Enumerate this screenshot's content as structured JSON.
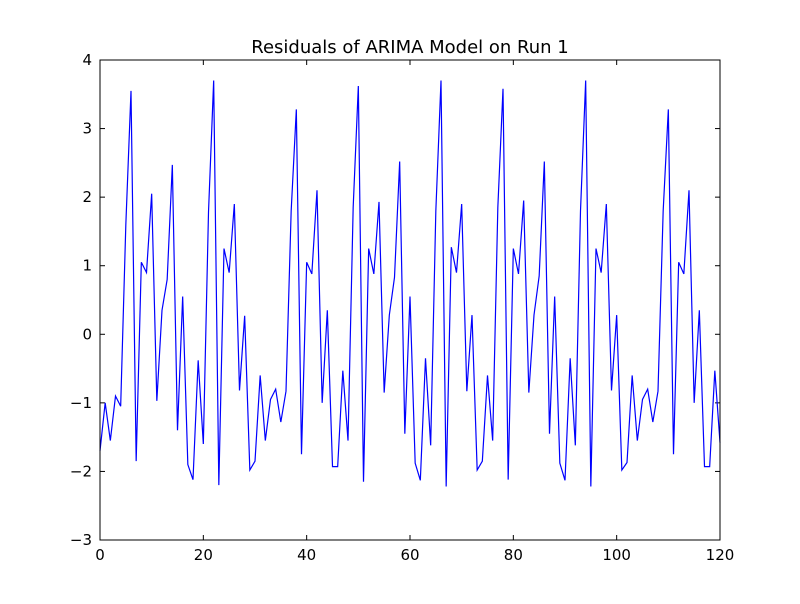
{
  "chart_data": {
    "type": "line",
    "title": "Residuals of ARIMA Model on Run 1",
    "xlabel": "",
    "ylabel": "",
    "xlim": [
      0,
      120
    ],
    "ylim": [
      -3,
      4
    ],
    "xticks": [
      0,
      20,
      40,
      60,
      80,
      100,
      120
    ],
    "yticks": [
      -3,
      -2,
      -1,
      0,
      1,
      2,
      3,
      4
    ],
    "grid": false,
    "legend": "none",
    "series_color": "#0000ff",
    "series": [
      {
        "x": [
          0,
          1,
          2,
          3,
          4,
          5,
          6,
          7,
          8,
          9,
          10,
          11,
          12,
          13,
          14,
          15,
          16,
          17,
          18,
          19,
          20,
          21,
          22,
          23,
          24,
          25,
          26,
          27,
          28,
          29,
          30,
          31,
          32,
          33,
          34,
          35,
          36,
          37,
          38,
          39,
          40,
          41,
          42,
          43,
          44,
          45,
          46,
          47,
          48,
          49,
          50,
          51,
          52,
          53,
          54,
          55,
          56,
          57,
          58,
          59,
          60,
          61,
          62,
          63,
          64,
          65,
          66,
          67,
          68,
          69,
          70,
          71,
          72,
          73,
          74,
          75,
          76,
          77,
          78,
          79,
          80,
          81,
          82,
          83,
          84,
          85,
          86,
          87,
          88,
          89,
          90,
          91,
          92,
          93,
          94,
          95,
          96,
          97,
          98,
          99,
          100,
          101,
          102,
          103,
          104,
          105,
          106,
          107,
          108,
          109,
          110,
          111,
          112,
          113,
          114,
          115,
          116,
          117,
          118,
          119,
          120
        ],
        "values": [
          -1.7,
          -1.0,
          -1.55,
          -0.9,
          -1.05,
          1.6,
          3.55,
          -1.85,
          1.05,
          0.9,
          2.05,
          -0.97,
          0.35,
          0.8,
          2.47,
          -1.4,
          0.55,
          -1.9,
          -2.12,
          -0.38,
          -1.6,
          1.78,
          3.7,
          -2.2,
          1.25,
          0.9,
          1.9,
          -0.82,
          0.27,
          -1.98,
          -1.85,
          -0.6,
          -1.55,
          -0.95,
          -0.8,
          -1.28,
          -0.83,
          1.8,
          3.28,
          -1.75,
          1.05,
          0.88,
          2.1,
          -1.0,
          0.35,
          -1.93,
          -1.93,
          -0.53,
          -1.55,
          1.85,
          3.62,
          -2.15,
          1.25,
          0.88,
          1.93,
          -0.85,
          0.28,
          0.83,
          2.52,
          -1.45,
          0.55,
          -1.88,
          -2.13,
          -0.35,
          -1.62,
          1.8,
          3.7,
          -2.22,
          1.27,
          0.9,
          1.9,
          -0.83,
          0.28,
          -1.98,
          -1.85,
          -0.6,
          -1.55,
          1.85,
          3.58,
          -2.12,
          1.25,
          0.88,
          1.95,
          -0.85,
          0.28,
          0.85,
          2.52,
          -1.45,
          0.55,
          -1.88,
          -2.13,
          -0.35,
          -1.62,
          1.8,
          3.7,
          -2.22,
          1.25,
          0.9,
          1.9,
          -0.82,
          0.28,
          -1.98,
          -1.87,
          -0.6,
          -1.55,
          -0.95,
          -0.8,
          -1.28,
          -0.83,
          1.8,
          3.28,
          -1.75,
          1.05,
          0.88,
          2.1,
          -1.0,
          0.35,
          -1.93,
          -1.93,
          -0.53,
          -1.58
        ]
      }
    ]
  }
}
